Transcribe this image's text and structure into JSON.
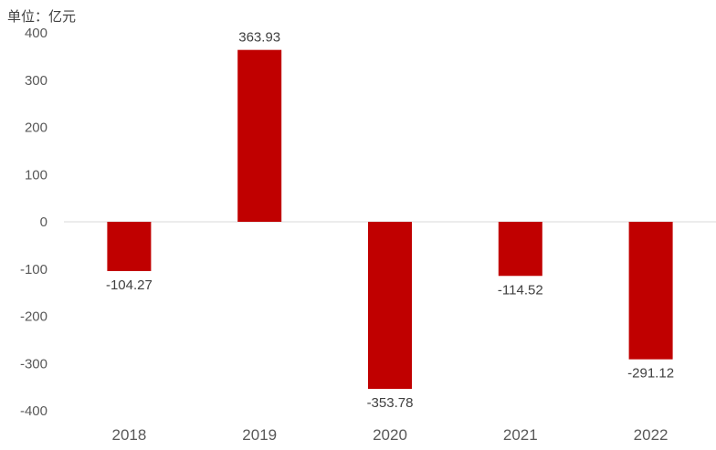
{
  "unit_label": "单位：亿元",
  "chart_data": {
    "type": "bar",
    "title": "",
    "xlabel": "",
    "ylabel": "单位：亿元",
    "categories": [
      "2018",
      "2019",
      "2020",
      "2021",
      "2022"
    ],
    "values": [
      -104.27,
      363.93,
      -353.78,
      -114.52,
      -291.12
    ],
    "data_labels": [
      "-104.27",
      "363.93",
      "-353.78",
      "-114.52",
      "-291.12"
    ],
    "ylim": [
      -400,
      400
    ],
    "yticks": [
      400,
      300,
      200,
      100,
      0,
      -100,
      -200,
      -300,
      -400
    ],
    "bar_color": "#c00000",
    "grid": false,
    "legend": "none"
  }
}
